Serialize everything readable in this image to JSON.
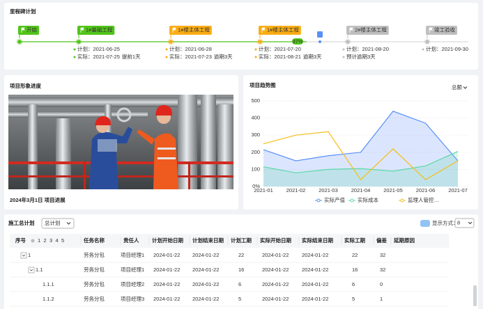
{
  "milestones": {
    "title": "里程碑计划",
    "progress_label": "37%",
    "items": [
      {
        "label": "开始",
        "color": "#52c41a"
      },
      {
        "label": "1#基础工程",
        "color": "#52c41a",
        "plan": "计划：2021-06-25",
        "actual": "实际：2021-07-25",
        "status": "提前1天",
        "status_color": "#52c41a"
      },
      {
        "label": "1#楼主体工程",
        "color": "#faad14",
        "plan": "计划：2021-06-28",
        "actual": "实际：2021-07-23",
        "status": "逾期3天",
        "status_color": "#f5222d"
      },
      {
        "label": "1#楼主体工程",
        "color": "#faad14",
        "plan": "计划：2021-07-20",
        "actual": "实际：2021-08-21",
        "status": "逾期3天",
        "status_color": "#f5222d"
      },
      {
        "label": "2#楼主体工程",
        "color": "#bfbfbf",
        "plan": "计划：2021-08-20",
        "status": "预计逾期3天",
        "status_color": "#f5222d"
      },
      {
        "label": "竣工验收",
        "color": "#bfbfbf",
        "plan": "计划：2021-09-30"
      }
    ]
  },
  "image_panel": {
    "title": "项目形象进度",
    "caption": "2024年3月1日 项目进展"
  },
  "chart_panel": {
    "dropdown": "总额"
  },
  "chart_data": {
    "type": "line",
    "title": "项目趋势图",
    "categories": [
      "2021-01",
      "2021-02",
      "2021-03",
      "2021-04",
      "2021-05",
      "2021-06",
      "2021-07"
    ],
    "ylim": [
      0,
      500
    ],
    "yticks": [
      {
        "value": 0,
        "label": "0%"
      },
      100,
      200,
      300,
      400,
      500
    ],
    "grid": true,
    "series": [
      {
        "name": "实际产值",
        "color": "#5b8ff9",
        "area": true,
        "values": [
          215,
          150,
          180,
          200,
          440,
          370,
          150
        ]
      },
      {
        "name": "实际成本",
        "color": "#5ad8a6",
        "area": true,
        "values": [
          115,
          80,
          100,
          105,
          90,
          120,
          205
        ]
      },
      {
        "name": "监理人管控…",
        "color": "#f6bd16",
        "area": false,
        "values": [
          250,
          300,
          320,
          40,
          220,
          40,
          150
        ]
      }
    ]
  },
  "table": {
    "title": "施工总计划",
    "select": "总计划",
    "display_label": "显示方式：",
    "display_select": "8",
    "levels": [
      "1",
      "2",
      "3",
      "4",
      "5"
    ],
    "columns": [
      "序号",
      "任务名称",
      "责任人",
      "计划开始日期",
      "计划结束日期",
      "计划工期",
      "实际开始日期",
      "实际结束日期",
      "实际工期",
      "偏差",
      "延期原因"
    ],
    "rows": [
      {
        "id": "1",
        "task": "劳务分包",
        "owner": "项目经理1",
        "plan_start": "2024-01-22",
        "plan_end": "2024-01-22",
        "plan_days": 22,
        "actual_start": "2024-01-22",
        "actual_end": "2024-01-22",
        "actual_days": 22,
        "deviation": 32
      },
      {
        "id": "1.1",
        "task": "劳务分包",
        "owner": "项目经理1",
        "plan_start": "2024-01-22",
        "plan_end": "2024-01-22",
        "plan_days": 16,
        "actual_start": "2024-01-22",
        "actual_end": "2024-01-22",
        "actual_days": 16,
        "deviation": 32
      },
      {
        "id": "1.1.1",
        "task": "劳务分包",
        "owner": "项目经理2",
        "plan_start": "2024-01-22",
        "plan_end": "2024-01-22",
        "plan_days": 6,
        "actual_start": "2024-01-22",
        "actual_end": "2024-01-22",
        "actual_days": 6,
        "deviation": 0
      },
      {
        "id": "1.1.2",
        "task": "劳务分包",
        "owner": "项目经理3",
        "plan_start": "2024-01-22",
        "plan_end": "2024-01-22",
        "plan_days": 5,
        "actual_start": "2024-01-22",
        "actual_end": "2024-01-22",
        "actual_days": 5,
        "deviation": 1
      }
    ]
  }
}
